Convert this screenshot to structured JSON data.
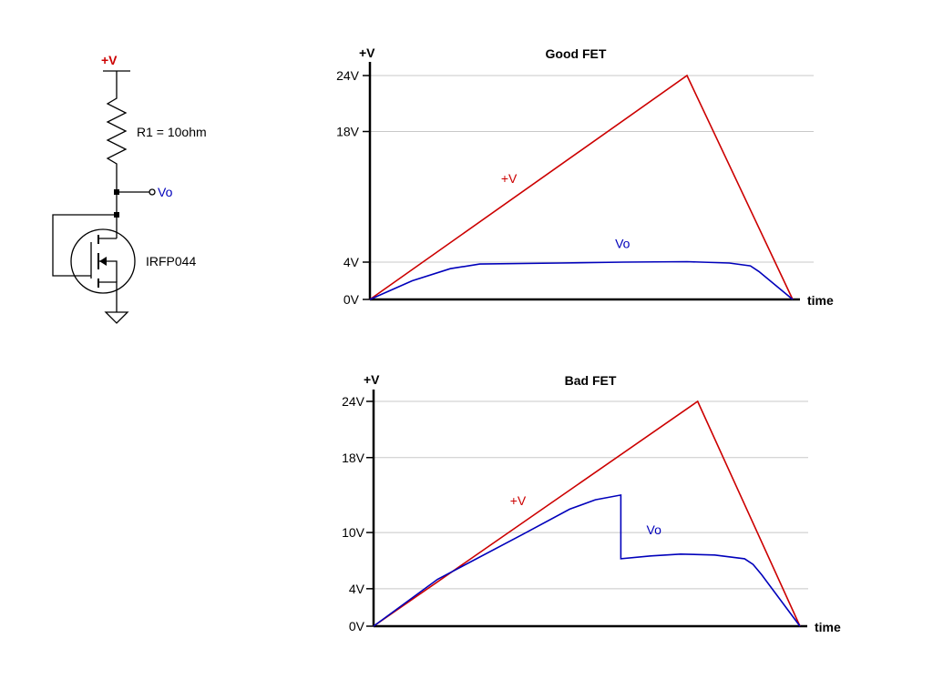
{
  "schematic": {
    "supply_label": "+V",
    "resistor_label": "R1 = 10ohm",
    "output_label": "Vo",
    "mosfet_label": "IRFP044"
  },
  "colors": {
    "supply": "#cc0000",
    "output": "#0000bb",
    "grid": "#c8c8c8"
  },
  "chart_data": [
    {
      "type": "line",
      "title": "Good FET",
      "ylabel": "+V",
      "xlabel": "time",
      "ylim": [
        0,
        24
      ],
      "xlim": [
        0,
        100
      ],
      "yticks": [
        {
          "value": 0,
          "label": "0V"
        },
        {
          "value": 4,
          "label": "4V"
        },
        {
          "value": 18,
          "label": "18V"
        },
        {
          "value": 24,
          "label": "24V"
        }
      ],
      "grid": true,
      "series": [
        {
          "name": "+V",
          "color": "#cc0000",
          "points": [
            [
              0,
              0
            ],
            [
              75,
              24
            ],
            [
              100,
              0
            ]
          ]
        },
        {
          "name": "Vo",
          "color": "#0000bb",
          "points": [
            [
              0,
              0
            ],
            [
              10,
              2
            ],
            [
              19,
              3.3
            ],
            [
              26,
              3.8
            ],
            [
              45,
              3.9
            ],
            [
              60,
              4.0
            ],
            [
              75,
              4.05
            ],
            [
              85,
              3.9
            ],
            [
              90,
              3.6
            ],
            [
              92,
              3.0
            ],
            [
              100,
              0
            ]
          ]
        }
      ],
      "annotations": [
        {
          "text": "+V",
          "color": "#cc0000",
          "x": 31,
          "y": 12.5
        },
        {
          "text": "Vo",
          "color": "#0000bb",
          "x": 58,
          "y": 5.5
        }
      ]
    },
    {
      "type": "line",
      "title": "Bad FET",
      "ylabel": "+V",
      "xlabel": "time",
      "ylim": [
        0,
        24
      ],
      "xlim": [
        0,
        100
      ],
      "yticks": [
        {
          "value": 0,
          "label": "0V"
        },
        {
          "value": 4,
          "label": "4V"
        },
        {
          "value": 10,
          "label": "10V"
        },
        {
          "value": 18,
          "label": "18V"
        },
        {
          "value": 24,
          "label": "24V"
        }
      ],
      "grid": true,
      "series": [
        {
          "name": "+V",
          "color": "#cc0000",
          "points": [
            [
              0,
              0
            ],
            [
              76,
              24
            ],
            [
              100,
              0
            ]
          ]
        },
        {
          "name": "Vo",
          "color": "#0000bb",
          "points": [
            [
              0,
              0
            ],
            [
              15,
              5
            ],
            [
              35,
              9.8
            ],
            [
              46,
              12.5
            ],
            [
              52,
              13.5
            ],
            [
              58,
              14
            ],
            [
              58,
              7.2
            ],
            [
              65,
              7.5
            ],
            [
              72,
              7.7
            ],
            [
              80,
              7.6
            ],
            [
              87,
              7.2
            ],
            [
              89,
              6.6
            ],
            [
              91,
              5.5
            ],
            [
              100,
              0
            ]
          ]
        }
      ],
      "annotations": [
        {
          "text": "+V",
          "color": "#cc0000",
          "x": 32,
          "y": 12.9
        },
        {
          "text": "Vo",
          "color": "#0000bb",
          "x": 64,
          "y": 9.8
        }
      ]
    }
  ]
}
